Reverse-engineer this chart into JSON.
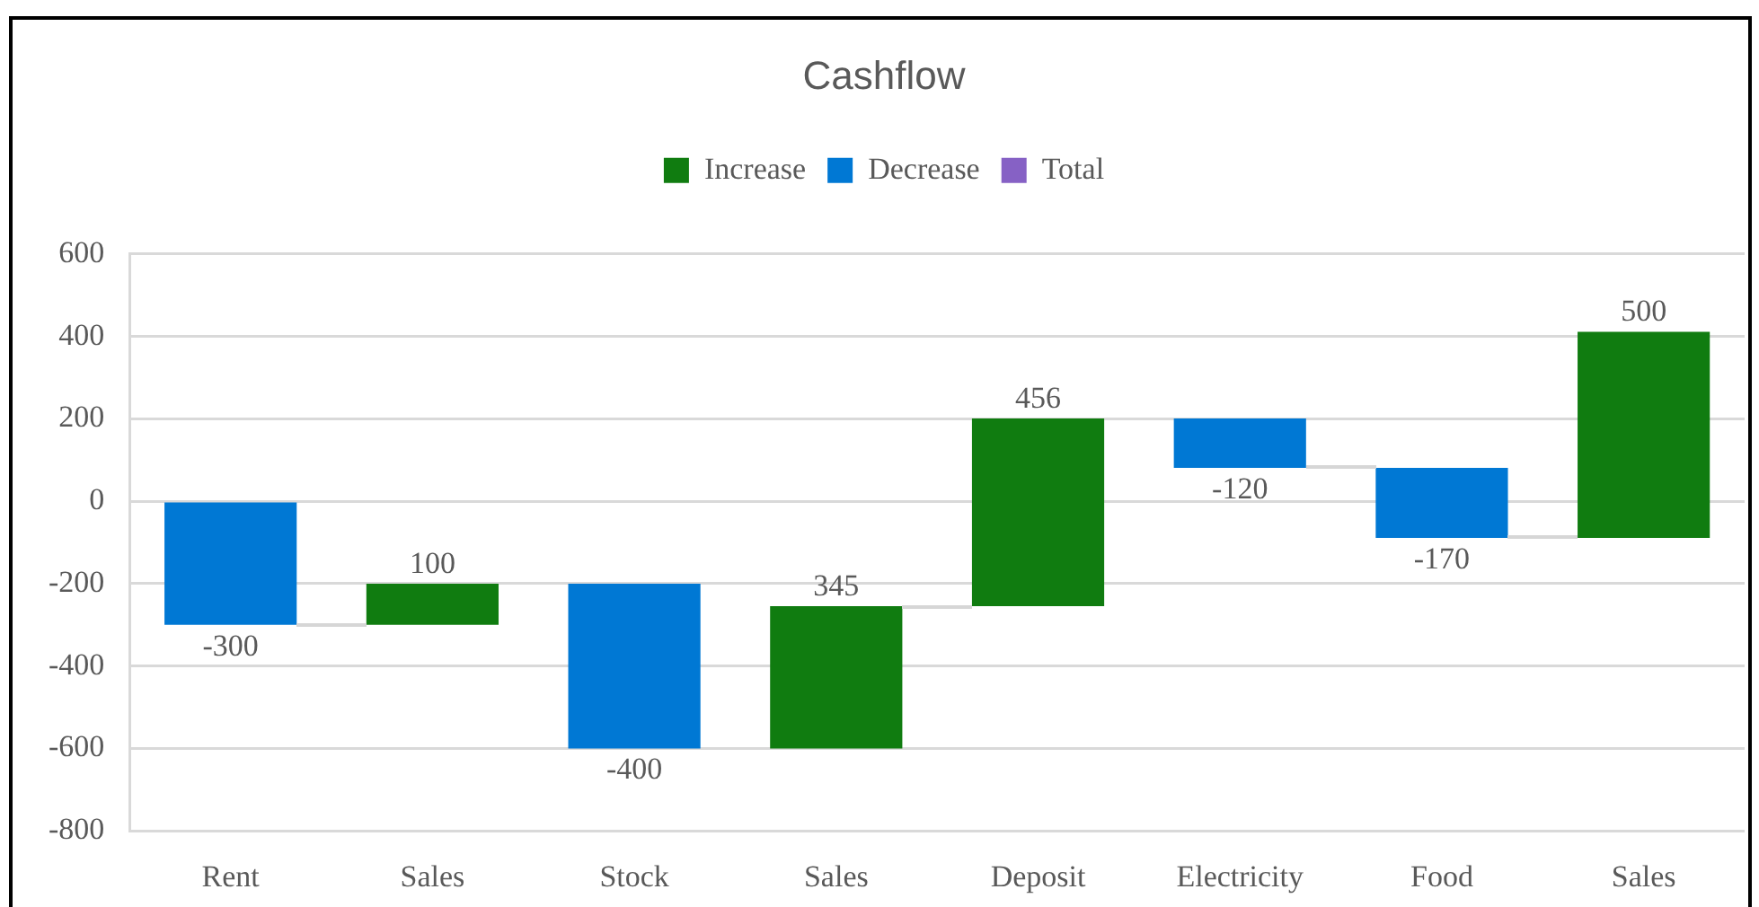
{
  "chart_data": {
    "type": "bar",
    "title": "Cashflow",
    "categories": [
      "Rent",
      "Sales",
      "Stock",
      "Sales",
      "Deposit",
      "Electricity",
      "Food",
      "Sales"
    ],
    "series": [
      {
        "name": "Increase",
        "color": "#107c10",
        "values": [
          null,
          100,
          null,
          345,
          456,
          null,
          null,
          500
        ],
        "base": [
          null,
          -300,
          null,
          -600,
          -255,
          null,
          null,
          -89
        ]
      },
      {
        "name": "Decrease",
        "color": "#0078d4",
        "values": [
          -300,
          null,
          -400,
          null,
          null,
          -120,
          -170,
          null
        ],
        "base": [
          0,
          null,
          -200,
          null,
          null,
          201,
          81,
          null
        ]
      },
      {
        "name": "Total",
        "color": "#8661c5",
        "values": [
          null,
          null,
          null,
          null,
          null,
          null,
          null,
          null
        ]
      }
    ],
    "ylim": [
      -800,
      600
    ],
    "yticks": [
      -800,
      -600,
      -400,
      -200,
      0,
      200,
      400,
      600
    ],
    "grid": "y",
    "legend": "top",
    "data_labels": true
  }
}
